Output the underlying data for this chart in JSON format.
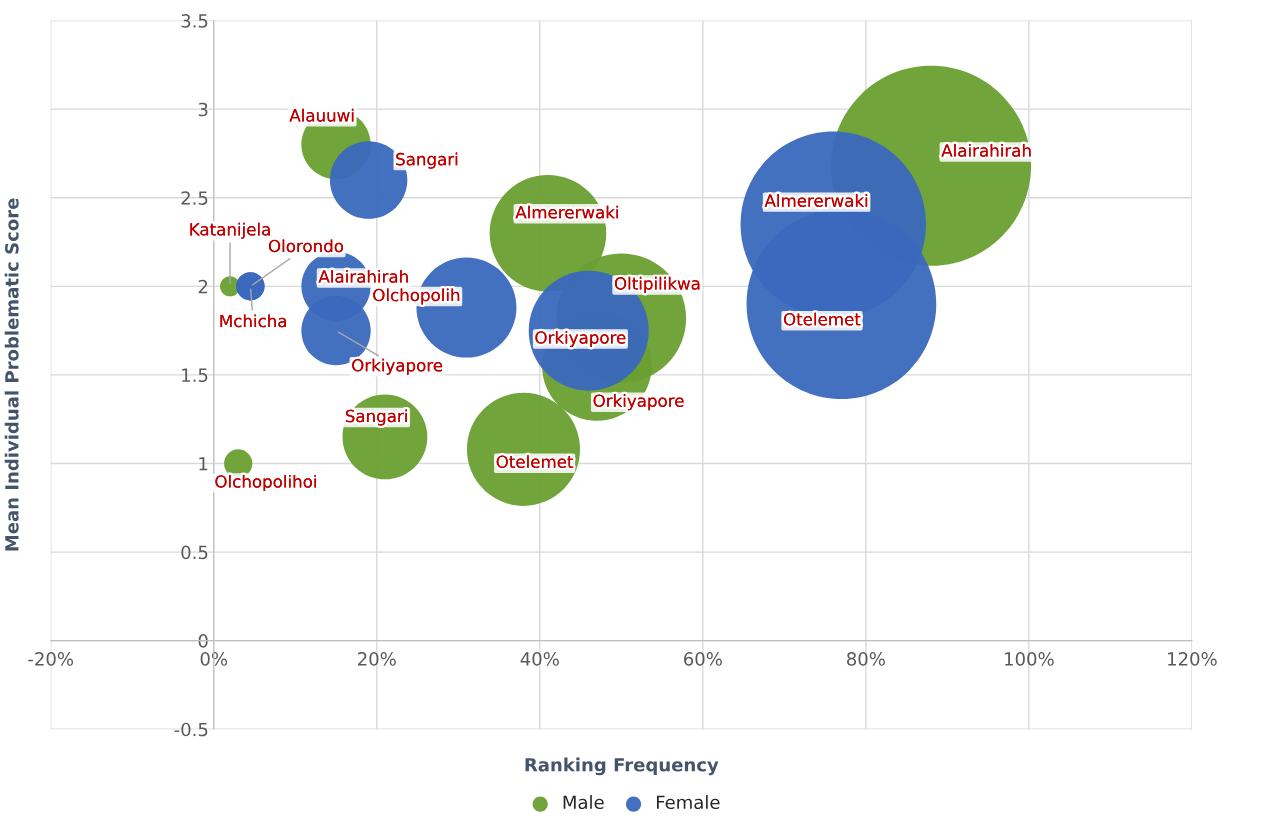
{
  "chart_data": {
    "type": "bubble",
    "xlabel": "Ranking Frequency",
    "ylabel": "Mean Individual Problematic Score",
    "xlim": [
      -20,
      120
    ],
    "xticks": [
      {
        "value": -20,
        "label": "-20%"
      },
      {
        "value": 0,
        "label": "0%"
      },
      {
        "value": 20,
        "label": "20%"
      },
      {
        "value": 40,
        "label": "40%"
      },
      {
        "value": 60,
        "label": "60%"
      },
      {
        "value": 80,
        "label": "80%"
      },
      {
        "value": 100,
        "label": "100%"
      },
      {
        "value": 120,
        "label": "120%"
      }
    ],
    "ylim": [
      -0.5,
      3.5
    ],
    "yticks": [
      -0.5,
      0,
      0.5,
      1,
      1.5,
      2,
      2.5,
      3,
      3.5
    ],
    "grid": true,
    "legend": "bottom",
    "series": [
      {
        "name": "Male",
        "color": "#6a9f32",
        "x": [
          15,
          2,
          3,
          21,
          41,
          50,
          47,
          38,
          88
        ],
        "values": [
          2.8,
          2,
          1,
          1.15,
          2.3,
          1.82,
          1.55,
          1.08,
          2.68
        ],
        "sizes": [
          0.12,
          0.01,
          0.02,
          0.18,
          0.34,
          0.42,
          0.3,
          0.32,
          1
        ],
        "value_labels": [
          "Alauuwi",
          "Katanijela",
          "Olchopolihoi",
          "Sangari",
          "Almererwaki",
          "Oltipilikwa",
          "Orkiyapore",
          "Otelemet",
          "Alairahirah"
        ]
      },
      {
        "name": "Female",
        "color": "#3a68bd",
        "x": [
          19,
          4.5,
          4.5,
          15,
          15,
          31,
          46,
          76,
          77
        ],
        "values": [
          2.6,
          2,
          2,
          2,
          1.75,
          1.88,
          1.75,
          2.35,
          1.9
        ],
        "sizes": [
          0.15,
          0.02,
          0.02,
          0.12,
          0.12,
          0.25,
          0.36,
          0.86,
          0.9
        ],
        "value_labels": [
          "Sangari",
          "Mchicha",
          "Olorondo",
          "Alairahirah",
          "Orkiyapore",
          "Olchopolih",
          "Orkiyapore",
          "Almererwaki",
          "Otelemet"
        ]
      }
    ]
  }
}
